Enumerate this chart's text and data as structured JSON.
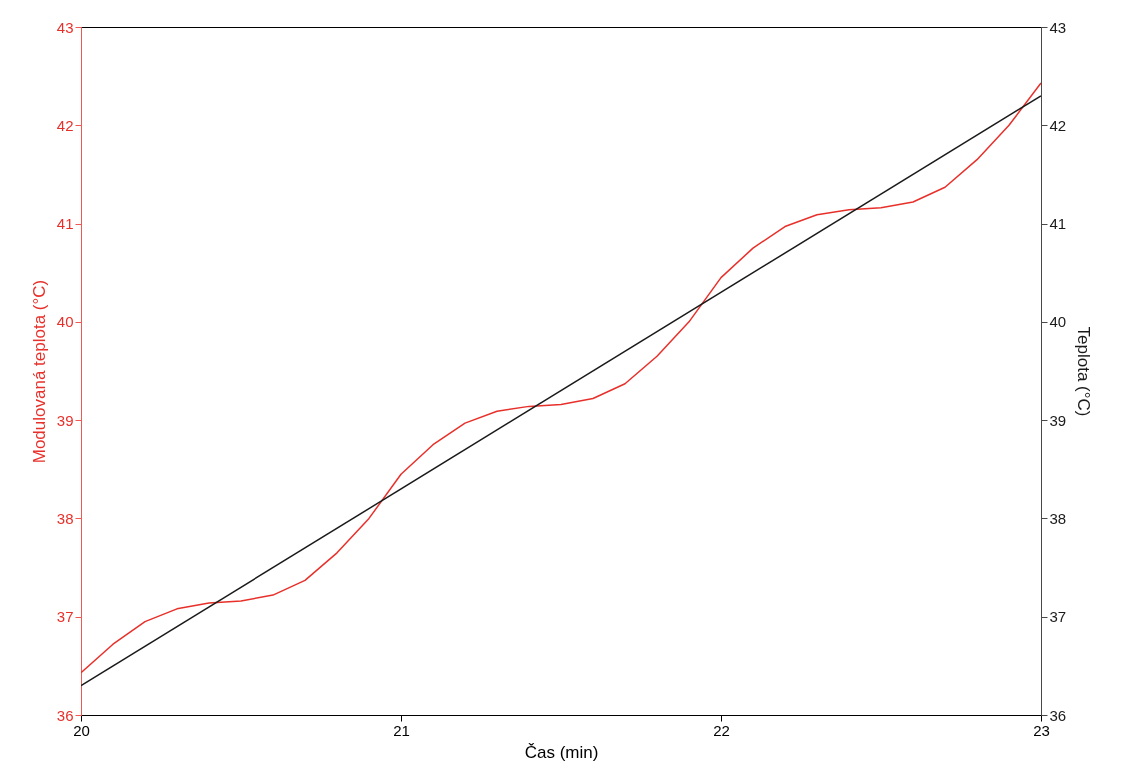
{
  "chart_data": {
    "type": "line",
    "xlabel": "Čas (min)",
    "ylabel": "Modulovaná teplota (°C)",
    "y2label": "Teplota (°C)",
    "x": [
      20,
      20.1,
      20.2,
      20.3,
      20.4,
      20.5,
      20.6,
      20.7,
      20.8,
      20.9,
      21,
      21.1,
      21.2,
      21.3,
      21.4,
      21.5,
      21.6,
      21.7,
      21.8,
      21.9,
      22,
      22.1,
      22.2,
      22.3,
      22.4,
      22.5,
      22.6,
      22.7,
      22.8,
      22.9,
      23
    ],
    "series": [
      {
        "color": "#e8302a",
        "values": [
          36.43,
          36.72,
          36.95,
          37.08,
          37.14,
          37.16,
          37.22,
          37.37,
          37.65,
          38.0,
          38.45,
          38.75,
          38.97,
          39.09,
          39.14,
          39.16,
          39.22,
          39.37,
          39.65,
          40.0,
          40.45,
          40.75,
          40.97,
          41.09,
          41.14,
          41.16,
          41.22,
          41.37,
          41.65,
          42.0,
          42.43
        ]
      },
      {
        "color": "#1a1a1a",
        "axis": "y2",
        "x": [
          20,
          23
        ],
        "values": [
          36.3,
          42.3
        ]
      }
    ],
    "xlim": [
      20,
      23
    ],
    "xticks": [
      20,
      21,
      22,
      23
    ],
    "ylim": [
      36,
      43
    ],
    "yticks": [
      36,
      37,
      38,
      39,
      40,
      41,
      42,
      43
    ],
    "y2lim": [
      36,
      43
    ],
    "y2ticks": [
      36,
      37,
      38,
      39,
      40,
      41,
      42,
      43
    ],
    "grid": false,
    "marker": "none",
    "line_style": "solid"
  }
}
